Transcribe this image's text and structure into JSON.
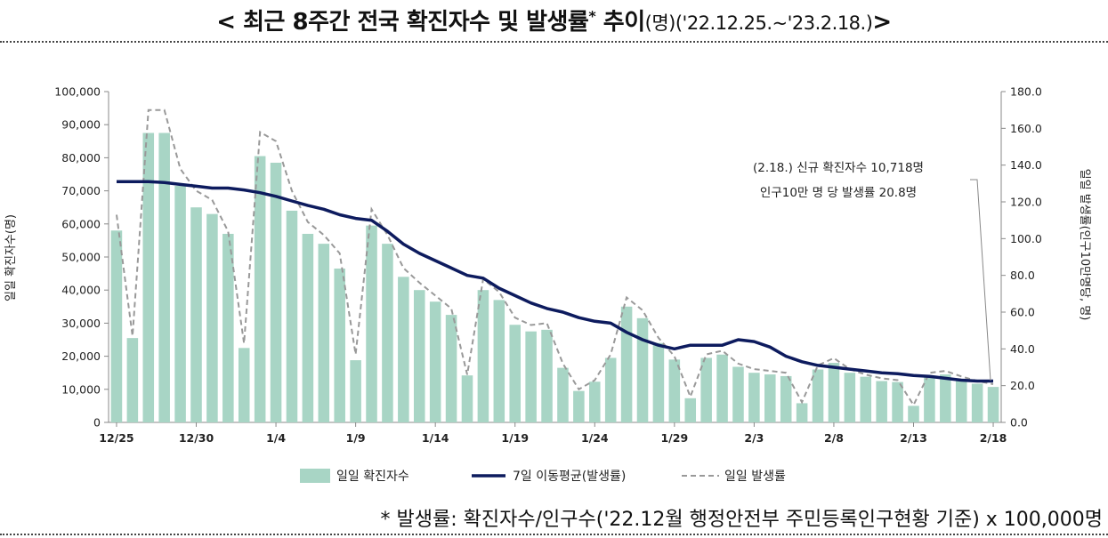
{
  "title": {
    "main": "< 최근 8주간 전국 확진자수 및 발생률",
    "star": "*",
    "main2": " 추이",
    "unit": "(명)",
    "range": "('22.12.25.~'23.2.18.)",
    "close": ">"
  },
  "footnote": "* 발생률: 확진자수/인구수('22.12월 행정안전부 주민등록인구현황 기준) x 100,000명",
  "colors": {
    "bar": "#a8d5c5",
    "line": "#0d1b5e",
    "dashed": "#999999",
    "axis": "#888888"
  },
  "chart_data": {
    "type": "bar",
    "ylabel": "일일 확진자수(명)",
    "y2label": "일일 발생률(인구10만명당, 명)",
    "ylim": [
      0,
      100000
    ],
    "y2lim": [
      0,
      180
    ],
    "y_ticks": [
      "0",
      "10,000",
      "20,000",
      "30,000",
      "40,000",
      "50,000",
      "60,000",
      "70,000",
      "80,000",
      "90,000",
      "100,000"
    ],
    "y2_ticks": [
      "0.0",
      "20.0",
      "40.0",
      "60.0",
      "80.0",
      "100.0",
      "120.0",
      "140.0",
      "160.0",
      "180.0"
    ],
    "x_ticks": [
      {
        "label": "12/25",
        "index": 0
      },
      {
        "label": "12/30",
        "index": 5
      },
      {
        "label": "1/4",
        "index": 10
      },
      {
        "label": "1/9",
        "index": 15
      },
      {
        "label": "1/14",
        "index": 20
      },
      {
        "label": "1/19",
        "index": 25
      },
      {
        "label": "1/24",
        "index": 30
      },
      {
        "label": "1/29",
        "index": 35
      },
      {
        "label": "2/3",
        "index": 40
      },
      {
        "label": "2/8",
        "index": 45
      },
      {
        "label": "2/13",
        "index": 50
      },
      {
        "label": "2/18",
        "index": 55
      }
    ],
    "series": [
      {
        "name": "일일 확진자수",
        "kind": "bar",
        "axis": "left",
        "values": [
          58000,
          25500,
          87500,
          87500,
          71500,
          65000,
          63000,
          57000,
          22500,
          80500,
          78500,
          64000,
          57000,
          54000,
          46500,
          18800,
          59500,
          54000,
          44000,
          40000,
          36500,
          32500,
          14200,
          40000,
          37000,
          29500,
          27500,
          28000,
          16500,
          9500,
          12300,
          19500,
          35000,
          31500,
          24000,
          19000,
          7300,
          19500,
          20500,
          16800,
          15000,
          14500,
          14000,
          5800,
          16000,
          18000,
          15000,
          13800,
          12500,
          12200,
          5000,
          14000,
          14500,
          13000,
          11700,
          10718
        ]
      },
      {
        "name": "7일 이동평균(발생률)",
        "kind": "line",
        "axis": "right",
        "values": [
          131,
          131,
          131,
          130.5,
          129.5,
          128.5,
          127.5,
          127.5,
          126.5,
          125,
          123,
          120.5,
          118,
          116,
          113,
          111,
          110,
          104,
          97,
          92,
          88,
          84,
          80,
          78.5,
          73,
          69,
          65,
          62,
          60,
          57,
          55,
          54,
          49,
          45,
          42,
          40,
          42,
          42,
          42,
          45,
          44,
          41,
          36,
          33,
          31,
          30,
          29,
          28,
          27,
          26.5,
          25.5,
          25,
          24,
          23,
          22.5,
          22.5
        ]
      },
      {
        "name": "일일 발생률",
        "kind": "dashed",
        "axis": "right",
        "values": [
          113,
          47,
          170,
          170,
          138,
          126,
          121,
          104,
          43,
          158,
          153,
          126,
          109,
          102,
          92,
          37,
          116,
          102,
          84,
          76,
          69,
          62,
          26,
          78,
          71,
          57,
          53,
          54,
          32,
          18,
          23,
          37,
          68,
          61,
          46,
          36,
          14,
          37,
          39,
          32,
          29,
          28,
          27,
          11,
          31,
          35,
          29,
          26,
          24,
          23,
          9.5,
          27,
          28,
          25,
          22.5,
          20.8
        ]
      }
    ],
    "annotation": {
      "line1": "(2.18.) 신규 확진자수 10,718명",
      "line2": "인구10만 명 당 발생률 20.8명"
    },
    "legend": {
      "position": "bottom",
      "bar": "일일 확진자수",
      "line": "7일 이동평균(발생률)",
      "dashed": "일일 발생률"
    }
  }
}
